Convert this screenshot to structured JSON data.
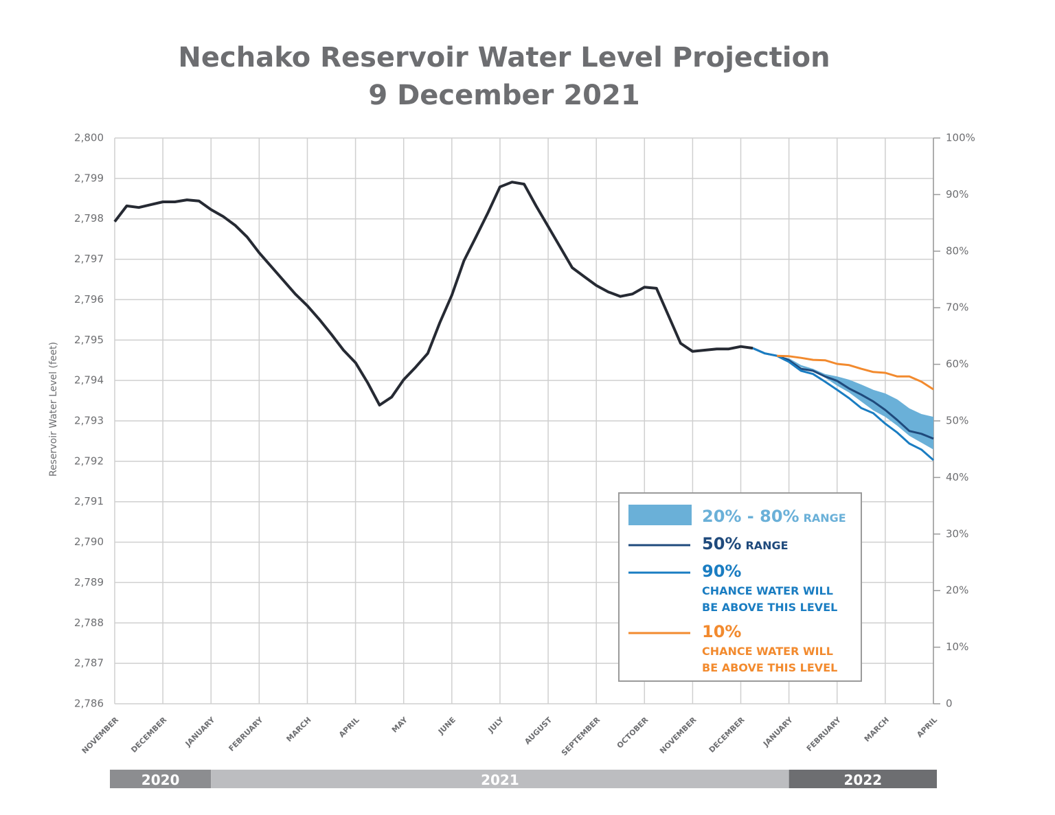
{
  "chart_data": {
    "type": "line",
    "title": "Nechako Reservoir Water Level Projection",
    "subtitle": "9 December 2021",
    "y_label": "Reservoir Water Level (feet)",
    "categories": [
      "NOVEMBER",
      null,
      null,
      null,
      "DECEMBER",
      null,
      null,
      null,
      "JANUARY",
      null,
      null,
      null,
      "FEBRUARY",
      null,
      null,
      null,
      "MARCH",
      null,
      null,
      null,
      "APRIL",
      null,
      null,
      null,
      "MAY",
      null,
      null,
      null,
      "JUNE",
      null,
      null,
      null,
      "JULY",
      null,
      null,
      null,
      "AUGUST",
      null,
      null,
      null,
      "SEPTEMBER",
      null,
      null,
      null,
      "OCTOBER",
      null,
      null,
      null,
      "NOVEMBER",
      null,
      null,
      null,
      "DECEMBER",
      null,
      null,
      null,
      "JANUARY",
      null,
      null,
      null,
      "FEBRUARY",
      null,
      null,
      null,
      "MARCH",
      null,
      null,
      null,
      "APRIL"
    ],
    "years": [
      "2020",
      "2021",
      "2022"
    ],
    "ylim": [
      2786,
      2800
    ],
    "yticks": [
      {
        "value": 2786,
        "label": "2,786"
      },
      {
        "value": 2787,
        "label": "2,787"
      },
      {
        "value": 2788,
        "label": "2,788"
      },
      {
        "value": 2789,
        "label": "2,789"
      },
      {
        "value": 2790,
        "label": "2,790"
      },
      {
        "value": 2791,
        "label": "2,791"
      },
      {
        "value": 2792,
        "label": "2,792"
      },
      {
        "value": 2793,
        "label": "2,793"
      },
      {
        "value": 2794,
        "label": "2,794"
      },
      {
        "value": 2795,
        "label": "2,795"
      },
      {
        "value": 2796,
        "label": "2,796"
      },
      {
        "value": 2797,
        "label": "2,797"
      },
      {
        "value": 2798,
        "label": "2,798"
      },
      {
        "value": 2799,
        "label": "2,799"
      },
      {
        "value": 2800,
        "label": "2,800"
      }
    ],
    "y2lim": [
      0,
      100
    ],
    "y2ticks": [
      0,
      {
        "value": 10,
        "label": "10%"
      },
      {
        "value": 20,
        "label": "20%"
      },
      {
        "value": 30,
        "label": "30%"
      },
      {
        "value": 40,
        "label": "40%"
      },
      {
        "value": 50,
        "label": "50%"
      },
      {
        "value": 60,
        "label": "60%"
      },
      {
        "value": 70,
        "label": "70%"
      },
      {
        "value": 80,
        "label": "80%"
      },
      {
        "value": 90,
        "label": "90%"
      },
      {
        "value": 100,
        "label": "100%"
      }
    ],
    "grid": true,
    "legend": "lower right",
    "band": {
      "name": "20% - 80%",
      "suffix": "RANGE",
      "color": "#6ab0d8",
      "high": [
        null,
        null,
        null,
        null,
        null,
        null,
        null,
        null,
        null,
        null,
        null,
        null,
        null,
        null,
        null,
        null,
        null,
        null,
        null,
        null,
        null,
        null,
        null,
        null,
        null,
        null,
        null,
        null,
        null,
        null,
        null,
        null,
        null,
        null,
        null,
        null,
        null,
        null,
        null,
        null,
        null,
        null,
        null,
        null,
        null,
        null,
        null,
        null,
        null,
        null,
        null,
        null,
        null,
        null,
        null,
        2794.61,
        2794.55,
        2794.38,
        2794.29,
        2794.16,
        2794.1,
        2794.02,
        2793.9,
        2793.77,
        2793.68,
        2793.53,
        2793.31,
        2793.17,
        2793.1
      ],
      "low": [
        null,
        null,
        null,
        null,
        null,
        null,
        null,
        null,
        null,
        null,
        null,
        null,
        null,
        null,
        null,
        null,
        null,
        null,
        null,
        null,
        null,
        null,
        null,
        null,
        null,
        null,
        null,
        null,
        null,
        null,
        null,
        null,
        null,
        null,
        null,
        null,
        null,
        null,
        null,
        null,
        null,
        null,
        null,
        null,
        null,
        null,
        null,
        null,
        null,
        null,
        null,
        null,
        null,
        null,
        null,
        2794.61,
        2794.5,
        2794.33,
        2794.24,
        2794.07,
        2793.87,
        2793.7,
        2793.48,
        2793.26,
        2793.1,
        2792.88,
        2792.63,
        2792.46,
        2792.29
      ]
    },
    "series": [
      {
        "color": "#262a33",
        "values": [
          2797.93,
          2798.32,
          2798.28,
          2798.35,
          2798.42,
          2798.42,
          2798.47,
          2798.44,
          2798.23,
          2798.06,
          2797.84,
          2797.55,
          2797.16,
          2796.82,
          2796.48,
          2796.14,
          2795.85,
          2795.51,
          2795.14,
          2794.75,
          2794.44,
          2793.95,
          2793.39,
          2793.59,
          2794.02,
          2794.33,
          2794.67,
          2795.43,
          2796.11,
          2796.96,
          2797.55,
          2798.15,
          2798.79,
          2798.91,
          2798.86,
          2798.32,
          2797.81,
          2797.3,
          2796.79,
          2796.57,
          2796.35,
          2796.19,
          2796.08,
          2796.14,
          2796.31,
          2796.28,
          2795.6,
          2794.92,
          2794.72,
          2794.75,
          2794.78,
          2794.78,
          2794.84,
          2794.8,
          null,
          null,
          null,
          null,
          null,
          null,
          null,
          null,
          null,
          null,
          null,
          null,
          null,
          null,
          null
        ]
      },
      {
        "name": "50%",
        "suffix": "RANGE",
        "color": "#1f4a7c",
        "values": [
          null,
          null,
          null,
          null,
          null,
          null,
          null,
          null,
          null,
          null,
          null,
          null,
          null,
          null,
          null,
          null,
          null,
          null,
          null,
          null,
          null,
          null,
          null,
          null,
          null,
          null,
          null,
          null,
          null,
          null,
          null,
          null,
          null,
          null,
          null,
          null,
          null,
          null,
          null,
          null,
          null,
          null,
          null,
          null,
          null,
          null,
          null,
          null,
          null,
          null,
          null,
          null,
          null,
          2794.8,
          2794.67,
          2794.61,
          2794.5,
          2794.29,
          2794.24,
          2794.1,
          2793.99,
          2793.8,
          2793.65,
          2793.48,
          2793.27,
          2793.02,
          2792.75,
          2792.68,
          2792.56
        ]
      },
      {
        "name": "90%",
        "label_lines": [
          "CHANCE WATER WILL",
          "BE ABOVE THIS LEVEL"
        ],
        "color": "#1a7dc2",
        "values": [
          null,
          null,
          null,
          null,
          null,
          null,
          null,
          null,
          null,
          null,
          null,
          null,
          null,
          null,
          null,
          null,
          null,
          null,
          null,
          null,
          null,
          null,
          null,
          null,
          null,
          null,
          null,
          null,
          null,
          null,
          null,
          null,
          null,
          null,
          null,
          null,
          null,
          null,
          null,
          null,
          null,
          null,
          null,
          null,
          null,
          null,
          null,
          null,
          null,
          null,
          null,
          null,
          null,
          2794.8,
          2794.67,
          2794.61,
          2794.46,
          2794.24,
          2794.16,
          2793.97,
          2793.77,
          2793.56,
          2793.32,
          2793.19,
          2792.93,
          2792.71,
          2792.44,
          2792.29,
          2792.03
        ]
      },
      {
        "name": "10%",
        "label_lines": [
          "CHANCE WATER WILL",
          "BE ABOVE THIS LEVEL"
        ],
        "color": "#f28a2e",
        "values": [
          null,
          null,
          null,
          null,
          null,
          null,
          null,
          null,
          null,
          null,
          null,
          null,
          null,
          null,
          null,
          null,
          null,
          null,
          null,
          null,
          null,
          null,
          null,
          null,
          null,
          null,
          null,
          null,
          null,
          null,
          null,
          null,
          null,
          null,
          null,
          null,
          null,
          null,
          null,
          null,
          null,
          null,
          null,
          null,
          null,
          null,
          null,
          null,
          null,
          null,
          null,
          null,
          null,
          null,
          null,
          2794.61,
          2794.6,
          2794.56,
          2794.51,
          2794.5,
          2794.41,
          2794.38,
          2794.29,
          2794.21,
          2794.19,
          2794.1,
          2794.1,
          2793.97,
          2793.78
        ]
      }
    ]
  }
}
